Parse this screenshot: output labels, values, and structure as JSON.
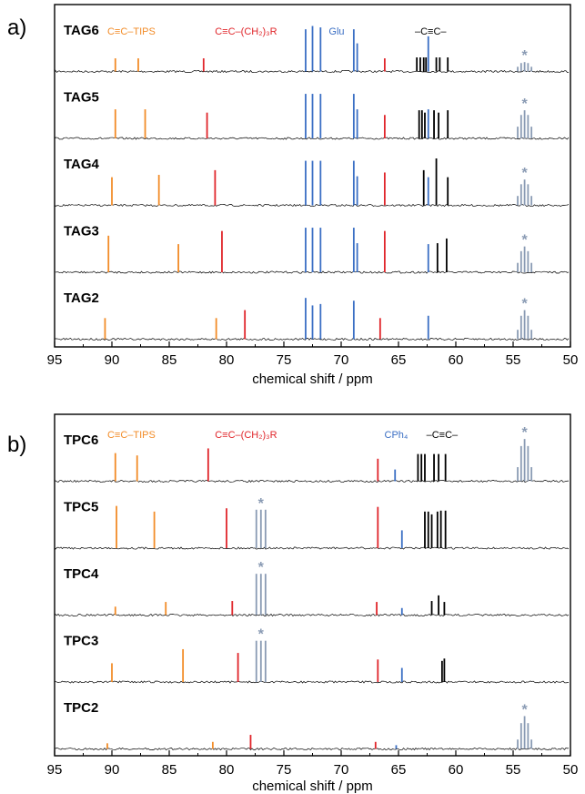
{
  "colors": {
    "orange": "#f28c28",
    "red": "#e0252a",
    "blue": "#3b6fc4",
    "black": "#000000",
    "star": "#8a9bb4",
    "frame": "#000000"
  },
  "chart_data": [
    {
      "panel_label": "a)",
      "type": "line",
      "xlabel": "chemical shift / ppm",
      "xlim": [
        95,
        50
      ],
      "x_reversed": true,
      "xticks": [
        95,
        90,
        85,
        80,
        75,
        70,
        65,
        60,
        55,
        50
      ],
      "legend": [
        {
          "text": "C≡C–TIPS",
          "color": "orange",
          "x": 88.3
        },
        {
          "text": "C≡C–(CH₂)₃R",
          "color": "red",
          "x": 78.3
        },
        {
          "text": "Glu",
          "color": "blue",
          "x": 70.4
        },
        {
          "text": "–C≡C–",
          "color": "black",
          "x": 62.2
        }
      ],
      "series": [
        {
          "name": "TAG6",
          "star": 54,
          "peaks": [
            {
              "x": 89.7,
              "h": 0.28,
              "c": "orange"
            },
            {
              "x": 87.7,
              "h": 0.28,
              "c": "orange"
            },
            {
              "x": 82.0,
              "h": 0.28,
              "c": "red"
            },
            {
              "x": 66.2,
              "h": 0.28,
              "c": "red"
            },
            {
              "x": 73.1,
              "h": 0.9,
              "c": "blue"
            },
            {
              "x": 72.5,
              "h": 0.97,
              "c": "blue"
            },
            {
              "x": 71.8,
              "h": 0.94,
              "c": "blue"
            },
            {
              "x": 68.9,
              "h": 0.9,
              "c": "blue"
            },
            {
              "x": 68.6,
              "h": 0.6,
              "c": "blue"
            },
            {
              "x": 62.4,
              "h": 0.75,
              "c": "blue"
            },
            {
              "x": 63.4,
              "h": 0.3,
              "c": "black"
            },
            {
              "x": 63.1,
              "h": 0.3,
              "c": "black"
            },
            {
              "x": 62.8,
              "h": 0.3,
              "c": "black"
            },
            {
              "x": 62.6,
              "h": 0.3,
              "c": "black"
            },
            {
              "x": 61.7,
              "h": 0.3,
              "c": "black"
            },
            {
              "x": 61.4,
              "h": 0.3,
              "c": "black"
            },
            {
              "x": 60.7,
              "h": 0.3,
              "c": "black"
            },
            {
              "x": 54.6,
              "h": 0.1,
              "c": "star"
            },
            {
              "x": 54.3,
              "h": 0.18,
              "c": "star"
            },
            {
              "x": 54.0,
              "h": 0.2,
              "c": "star"
            },
            {
              "x": 53.7,
              "h": 0.18,
              "c": "star"
            },
            {
              "x": 53.4,
              "h": 0.1,
              "c": "star"
            }
          ]
        },
        {
          "name": "TAG5",
          "star": 54,
          "peaks": [
            {
              "x": 89.7,
              "h": 0.62,
              "c": "orange"
            },
            {
              "x": 87.1,
              "h": 0.62,
              "c": "orange"
            },
            {
              "x": 81.7,
              "h": 0.55,
              "c": "red"
            },
            {
              "x": 66.2,
              "h": 0.5,
              "c": "red"
            },
            {
              "x": 73.1,
              "h": 0.95,
              "c": "blue"
            },
            {
              "x": 72.5,
              "h": 0.95,
              "c": "blue"
            },
            {
              "x": 71.8,
              "h": 0.95,
              "c": "blue"
            },
            {
              "x": 68.9,
              "h": 0.95,
              "c": "blue"
            },
            {
              "x": 68.6,
              "h": 0.62,
              "c": "blue"
            },
            {
              "x": 62.4,
              "h": 0.62,
              "c": "blue"
            },
            {
              "x": 63.2,
              "h": 0.6,
              "c": "black"
            },
            {
              "x": 62.95,
              "h": 0.6,
              "c": "black"
            },
            {
              "x": 62.7,
              "h": 0.55,
              "c": "black"
            },
            {
              "x": 61.9,
              "h": 0.6,
              "c": "black"
            },
            {
              "x": 61.5,
              "h": 0.55,
              "c": "black"
            },
            {
              "x": 60.7,
              "h": 0.6,
              "c": "black"
            },
            {
              "x": 54.6,
              "h": 0.25,
              "c": "star"
            },
            {
              "x": 54.3,
              "h": 0.5,
              "c": "star"
            },
            {
              "x": 54.0,
              "h": 0.6,
              "c": "star"
            },
            {
              "x": 53.7,
              "h": 0.5,
              "c": "star"
            },
            {
              "x": 53.4,
              "h": 0.25,
              "c": "star"
            }
          ]
        },
        {
          "name": "TAG4",
          "star": 54,
          "peaks": [
            {
              "x": 90.0,
              "h": 0.6,
              "c": "orange"
            },
            {
              "x": 85.9,
              "h": 0.65,
              "c": "orange"
            },
            {
              "x": 81.0,
              "h": 0.75,
              "c": "red"
            },
            {
              "x": 66.2,
              "h": 0.7,
              "c": "red"
            },
            {
              "x": 73.1,
              "h": 0.95,
              "c": "blue"
            },
            {
              "x": 72.5,
              "h": 0.95,
              "c": "blue"
            },
            {
              "x": 71.8,
              "h": 0.95,
              "c": "blue"
            },
            {
              "x": 68.9,
              "h": 0.95,
              "c": "blue"
            },
            {
              "x": 68.6,
              "h": 0.62,
              "c": "blue"
            },
            {
              "x": 62.4,
              "h": 0.6,
              "c": "blue"
            },
            {
              "x": 62.8,
              "h": 0.75,
              "c": "black"
            },
            {
              "x": 61.7,
              "h": 1.0,
              "c": "black"
            },
            {
              "x": 60.7,
              "h": 0.6,
              "c": "black"
            },
            {
              "x": 54.6,
              "h": 0.2,
              "c": "star"
            },
            {
              "x": 54.3,
              "h": 0.45,
              "c": "star"
            },
            {
              "x": 54.0,
              "h": 0.55,
              "c": "star"
            },
            {
              "x": 53.7,
              "h": 0.45,
              "c": "star"
            },
            {
              "x": 53.4,
              "h": 0.2,
              "c": "star"
            }
          ]
        },
        {
          "name": "TAG3",
          "star": 54,
          "peaks": [
            {
              "x": 90.3,
              "h": 0.78,
              "c": "orange"
            },
            {
              "x": 84.2,
              "h": 0.6,
              "c": "orange"
            },
            {
              "x": 80.4,
              "h": 0.88,
              "c": "red"
            },
            {
              "x": 66.2,
              "h": 0.88,
              "c": "red"
            },
            {
              "x": 73.1,
              "h": 0.95,
              "c": "blue"
            },
            {
              "x": 72.5,
              "h": 0.95,
              "c": "blue"
            },
            {
              "x": 71.8,
              "h": 0.95,
              "c": "blue"
            },
            {
              "x": 68.9,
              "h": 0.95,
              "c": "blue"
            },
            {
              "x": 68.6,
              "h": 0.62,
              "c": "blue"
            },
            {
              "x": 62.4,
              "h": 0.6,
              "c": "blue"
            },
            {
              "x": 61.6,
              "h": 0.62,
              "c": "black"
            },
            {
              "x": 60.8,
              "h": 0.72,
              "c": "black"
            },
            {
              "x": 54.6,
              "h": 0.2,
              "c": "star"
            },
            {
              "x": 54.3,
              "h": 0.45,
              "c": "star"
            },
            {
              "x": 54.0,
              "h": 0.55,
              "c": "star"
            },
            {
              "x": 53.7,
              "h": 0.45,
              "c": "star"
            },
            {
              "x": 53.4,
              "h": 0.2,
              "c": "star"
            }
          ]
        },
        {
          "name": "TAG2",
          "star": 54,
          "peaks": [
            {
              "x": 90.6,
              "h": 0.45,
              "c": "orange"
            },
            {
              "x": 80.9,
              "h": 0.45,
              "c": "orange"
            },
            {
              "x": 78.4,
              "h": 0.62,
              "c": "red"
            },
            {
              "x": 66.6,
              "h": 0.45,
              "c": "red"
            },
            {
              "x": 73.1,
              "h": 0.88,
              "c": "blue"
            },
            {
              "x": 72.5,
              "h": 0.72,
              "c": "blue"
            },
            {
              "x": 71.8,
              "h": 0.75,
              "c": "blue"
            },
            {
              "x": 68.9,
              "h": 0.82,
              "c": "blue"
            },
            {
              "x": 62.4,
              "h": 0.5,
              "c": "blue"
            },
            {
              "x": 54.6,
              "h": 0.2,
              "c": "star"
            },
            {
              "x": 54.3,
              "h": 0.5,
              "c": "star"
            },
            {
              "x": 54.0,
              "h": 0.62,
              "c": "star"
            },
            {
              "x": 53.7,
              "h": 0.5,
              "c": "star"
            },
            {
              "x": 53.4,
              "h": 0.2,
              "c": "star"
            }
          ]
        }
      ]
    },
    {
      "panel_label": "b)",
      "type": "line",
      "xlabel": "chemical shift / ppm",
      "xlim": [
        95,
        50
      ],
      "x_reversed": true,
      "xticks": [
        95,
        90,
        85,
        80,
        75,
        70,
        65,
        60,
        55,
        50
      ],
      "legend": [
        {
          "text": "C≡C–TIPS",
          "color": "orange",
          "x": 88.3
        },
        {
          "text": "C≡C–(CH₂)₃R",
          "color": "red",
          "x": 78.3
        },
        {
          "text": "CPh₄",
          "color": "blue",
          "x": 65.2
        },
        {
          "text": "–C≡C–",
          "color": "black",
          "x": 61.2
        }
      ],
      "series": [
        {
          "name": "TPC6",
          "star": 54,
          "peaks": [
            {
              "x": 89.7,
              "h": 0.6,
              "c": "orange"
            },
            {
              "x": 87.8,
              "h": 0.55,
              "c": "orange"
            },
            {
              "x": 81.6,
              "h": 0.7,
              "c": "red"
            },
            {
              "x": 66.8,
              "h": 0.48,
              "c": "red"
            },
            {
              "x": 65.3,
              "h": 0.25,
              "c": "blue"
            },
            {
              "x": 63.3,
              "h": 0.58,
              "c": "black"
            },
            {
              "x": 63.0,
              "h": 0.58,
              "c": "black"
            },
            {
              "x": 62.7,
              "h": 0.58,
              "c": "black"
            },
            {
              "x": 61.9,
              "h": 0.58,
              "c": "black"
            },
            {
              "x": 61.5,
              "h": 0.58,
              "c": "black"
            },
            {
              "x": 60.9,
              "h": 0.58,
              "c": "black"
            },
            {
              "x": 54.6,
              "h": 0.3,
              "c": "star"
            },
            {
              "x": 54.3,
              "h": 0.75,
              "c": "star"
            },
            {
              "x": 54.0,
              "h": 0.9,
              "c": "star"
            },
            {
              "x": 53.7,
              "h": 0.75,
              "c": "star"
            },
            {
              "x": 53.4,
              "h": 0.3,
              "c": "star"
            }
          ]
        },
        {
          "name": "TPC5",
          "star": 77,
          "peaks": [
            {
              "x": 89.6,
              "h": 0.9,
              "c": "orange"
            },
            {
              "x": 86.3,
              "h": 0.78,
              "c": "orange"
            },
            {
              "x": 80.0,
              "h": 0.85,
              "c": "red"
            },
            {
              "x": 66.8,
              "h": 0.88,
              "c": "red"
            },
            {
              "x": 77.4,
              "h": 0.82,
              "c": "star"
            },
            {
              "x": 77.0,
              "h": 0.82,
              "c": "star"
            },
            {
              "x": 76.6,
              "h": 0.82,
              "c": "star"
            },
            {
              "x": 64.7,
              "h": 0.38,
              "c": "blue"
            },
            {
              "x": 62.7,
              "h": 0.78,
              "c": "black"
            },
            {
              "x": 62.4,
              "h": 0.78,
              "c": "black"
            },
            {
              "x": 62.1,
              "h": 0.72,
              "c": "black"
            },
            {
              "x": 61.6,
              "h": 0.78,
              "c": "black"
            },
            {
              "x": 61.3,
              "h": 0.8,
              "c": "black"
            },
            {
              "x": 60.9,
              "h": 0.8,
              "c": "black"
            }
          ]
        },
        {
          "name": "TPC4",
          "star": 77,
          "peaks": [
            {
              "x": 89.7,
              "h": 0.18,
              "c": "orange"
            },
            {
              "x": 85.3,
              "h": 0.28,
              "c": "orange"
            },
            {
              "x": 79.5,
              "h": 0.3,
              "c": "red"
            },
            {
              "x": 66.9,
              "h": 0.28,
              "c": "red"
            },
            {
              "x": 77.4,
              "h": 0.88,
              "c": "star"
            },
            {
              "x": 77.0,
              "h": 0.88,
              "c": "star"
            },
            {
              "x": 76.6,
              "h": 0.88,
              "c": "star"
            },
            {
              "x": 64.7,
              "h": 0.15,
              "c": "blue"
            },
            {
              "x": 62.1,
              "h": 0.3,
              "c": "black"
            },
            {
              "x": 61.5,
              "h": 0.42,
              "c": "black"
            },
            {
              "x": 61.0,
              "h": 0.28,
              "c": "black"
            }
          ]
        },
        {
          "name": "TPC3",
          "star": 77,
          "peaks": [
            {
              "x": 90.0,
              "h": 0.4,
              "c": "orange"
            },
            {
              "x": 83.8,
              "h": 0.7,
              "c": "orange"
            },
            {
              "x": 79.0,
              "h": 0.62,
              "c": "red"
            },
            {
              "x": 66.8,
              "h": 0.48,
              "c": "red"
            },
            {
              "x": 77.4,
              "h": 0.88,
              "c": "star"
            },
            {
              "x": 77.0,
              "h": 0.88,
              "c": "star"
            },
            {
              "x": 76.6,
              "h": 0.88,
              "c": "star"
            },
            {
              "x": 64.7,
              "h": 0.3,
              "c": "blue"
            },
            {
              "x": 61.2,
              "h": 0.45,
              "c": "black"
            },
            {
              "x": 61.0,
              "h": 0.5,
              "c": "black"
            }
          ]
        },
        {
          "name": "TPC2",
          "star": 54,
          "peaks": [
            {
              "x": 90.4,
              "h": 0.12,
              "c": "orange"
            },
            {
              "x": 81.2,
              "h": 0.15,
              "c": "orange"
            },
            {
              "x": 77.9,
              "h": 0.3,
              "c": "red"
            },
            {
              "x": 67.0,
              "h": 0.15,
              "c": "red"
            },
            {
              "x": 65.2,
              "h": 0.08,
              "c": "blue"
            },
            {
              "x": 54.6,
              "h": 0.2,
              "c": "star"
            },
            {
              "x": 54.3,
              "h": 0.55,
              "c": "star"
            },
            {
              "x": 54.0,
              "h": 0.7,
              "c": "star"
            },
            {
              "x": 53.7,
              "h": 0.55,
              "c": "star"
            },
            {
              "x": 53.4,
              "h": 0.2,
              "c": "star"
            }
          ]
        }
      ]
    }
  ]
}
